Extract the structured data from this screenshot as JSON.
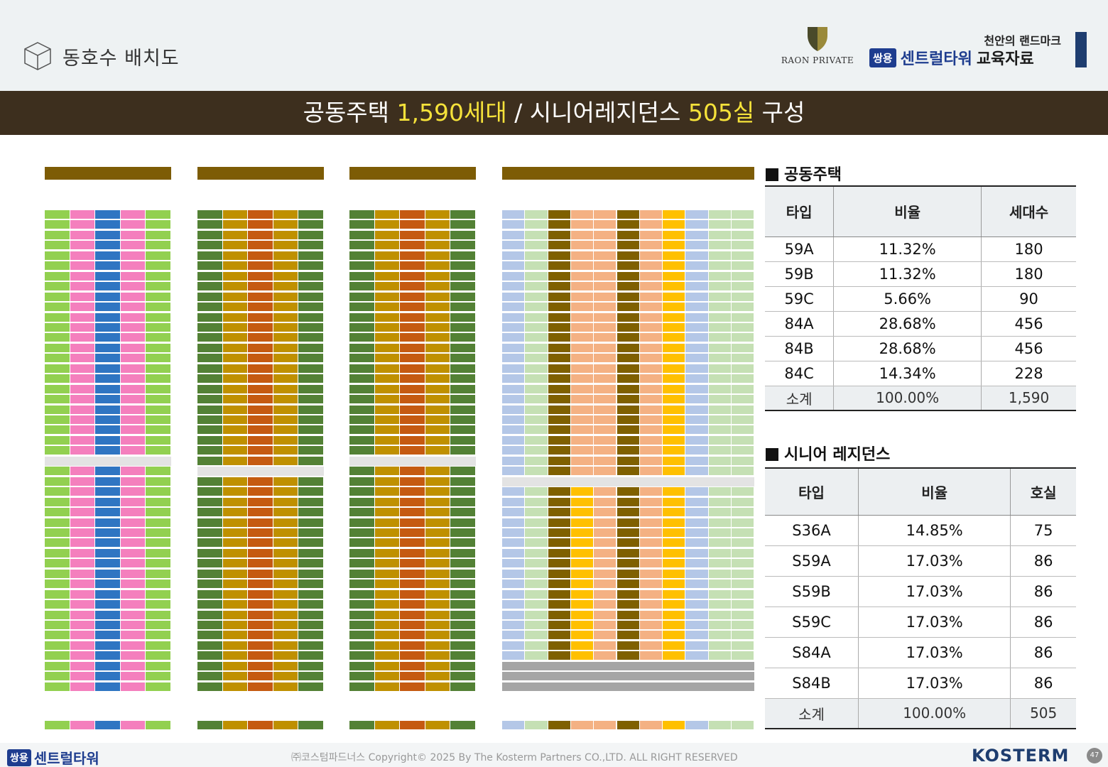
{
  "header": {
    "page_title": "동호수 배치도",
    "raon_brand": "RAON PRIVATE",
    "landmark": "천안의 랜드마크",
    "badge": "쌍용",
    "brand_name": "센트럴타워",
    "edu": "교육자료"
  },
  "banner": {
    "p1": "공동주택 ",
    "h1": "1,590세대",
    "p2": " / 시니어레지던스 ",
    "h2": "505실",
    "p3": " 구성"
  },
  "colors": {
    "59A": "#92d050",
    "59B": "#f47fbd",
    "59C": "#2f75c2",
    "84A": "#538135",
    "84B": "#bf9000",
    "84C": "#c55a11",
    "S36A": "#b4c7e7",
    "S59A": "#ffc000",
    "S59B": "#7f6000",
    "S59C": "#f4b183",
    "S84A": "#c5e0b4",
    "building_header": "#7d5c05",
    "banner_bg": "#3d2f1e",
    "highlight": "#f5e23a"
  },
  "apartment": {
    "title": "공동주택",
    "headers": [
      "타입",
      "비율",
      "세대수"
    ],
    "rows": [
      {
        "type": "59A",
        "ratio": "11.32%",
        "count": "180"
      },
      {
        "type": "59B",
        "ratio": "11.32%",
        "count": "180"
      },
      {
        "type": "59C",
        "ratio": "5.66%",
        "count": "90"
      },
      {
        "type": "84A",
        "ratio": "28.68%",
        "count": "456"
      },
      {
        "type": "84B",
        "ratio": "28.68%",
        "count": "456"
      },
      {
        "type": "84C",
        "ratio": "14.34%",
        "count": "228"
      }
    ],
    "subtotal": {
      "type": "소계",
      "ratio": "100.00%",
      "count": "1,590"
    }
  },
  "senior": {
    "title": "시니어 레지던스",
    "headers": [
      "타입",
      "비율",
      "호실"
    ],
    "rows": [
      {
        "type": "S36A",
        "ratio": "14.85%",
        "count": "75"
      },
      {
        "type": "S59A",
        "ratio": "17.03%",
        "count": "86"
      },
      {
        "type": "S59B",
        "ratio": "17.03%",
        "count": "86"
      },
      {
        "type": "S59C",
        "ratio": "17.03%",
        "count": "86"
      },
      {
        "type": "S84A",
        "ratio": "17.03%",
        "count": "86"
      },
      {
        "type": "S84B",
        "ratio": "17.03%",
        "count": "86"
      }
    ],
    "subtotal": {
      "type": "소계",
      "ratio": "100.00%",
      "count": "505"
    }
  },
  "footer": {
    "badge": "쌍용",
    "brand": "센트럴타워",
    "copyright": "㈜코스텀파드너스 Copyright© 2025 By The Kosterm Partners CO.,LTD. ALL RIGHT RESERVED",
    "logo": "KOSTERM",
    "page": "47"
  }
}
